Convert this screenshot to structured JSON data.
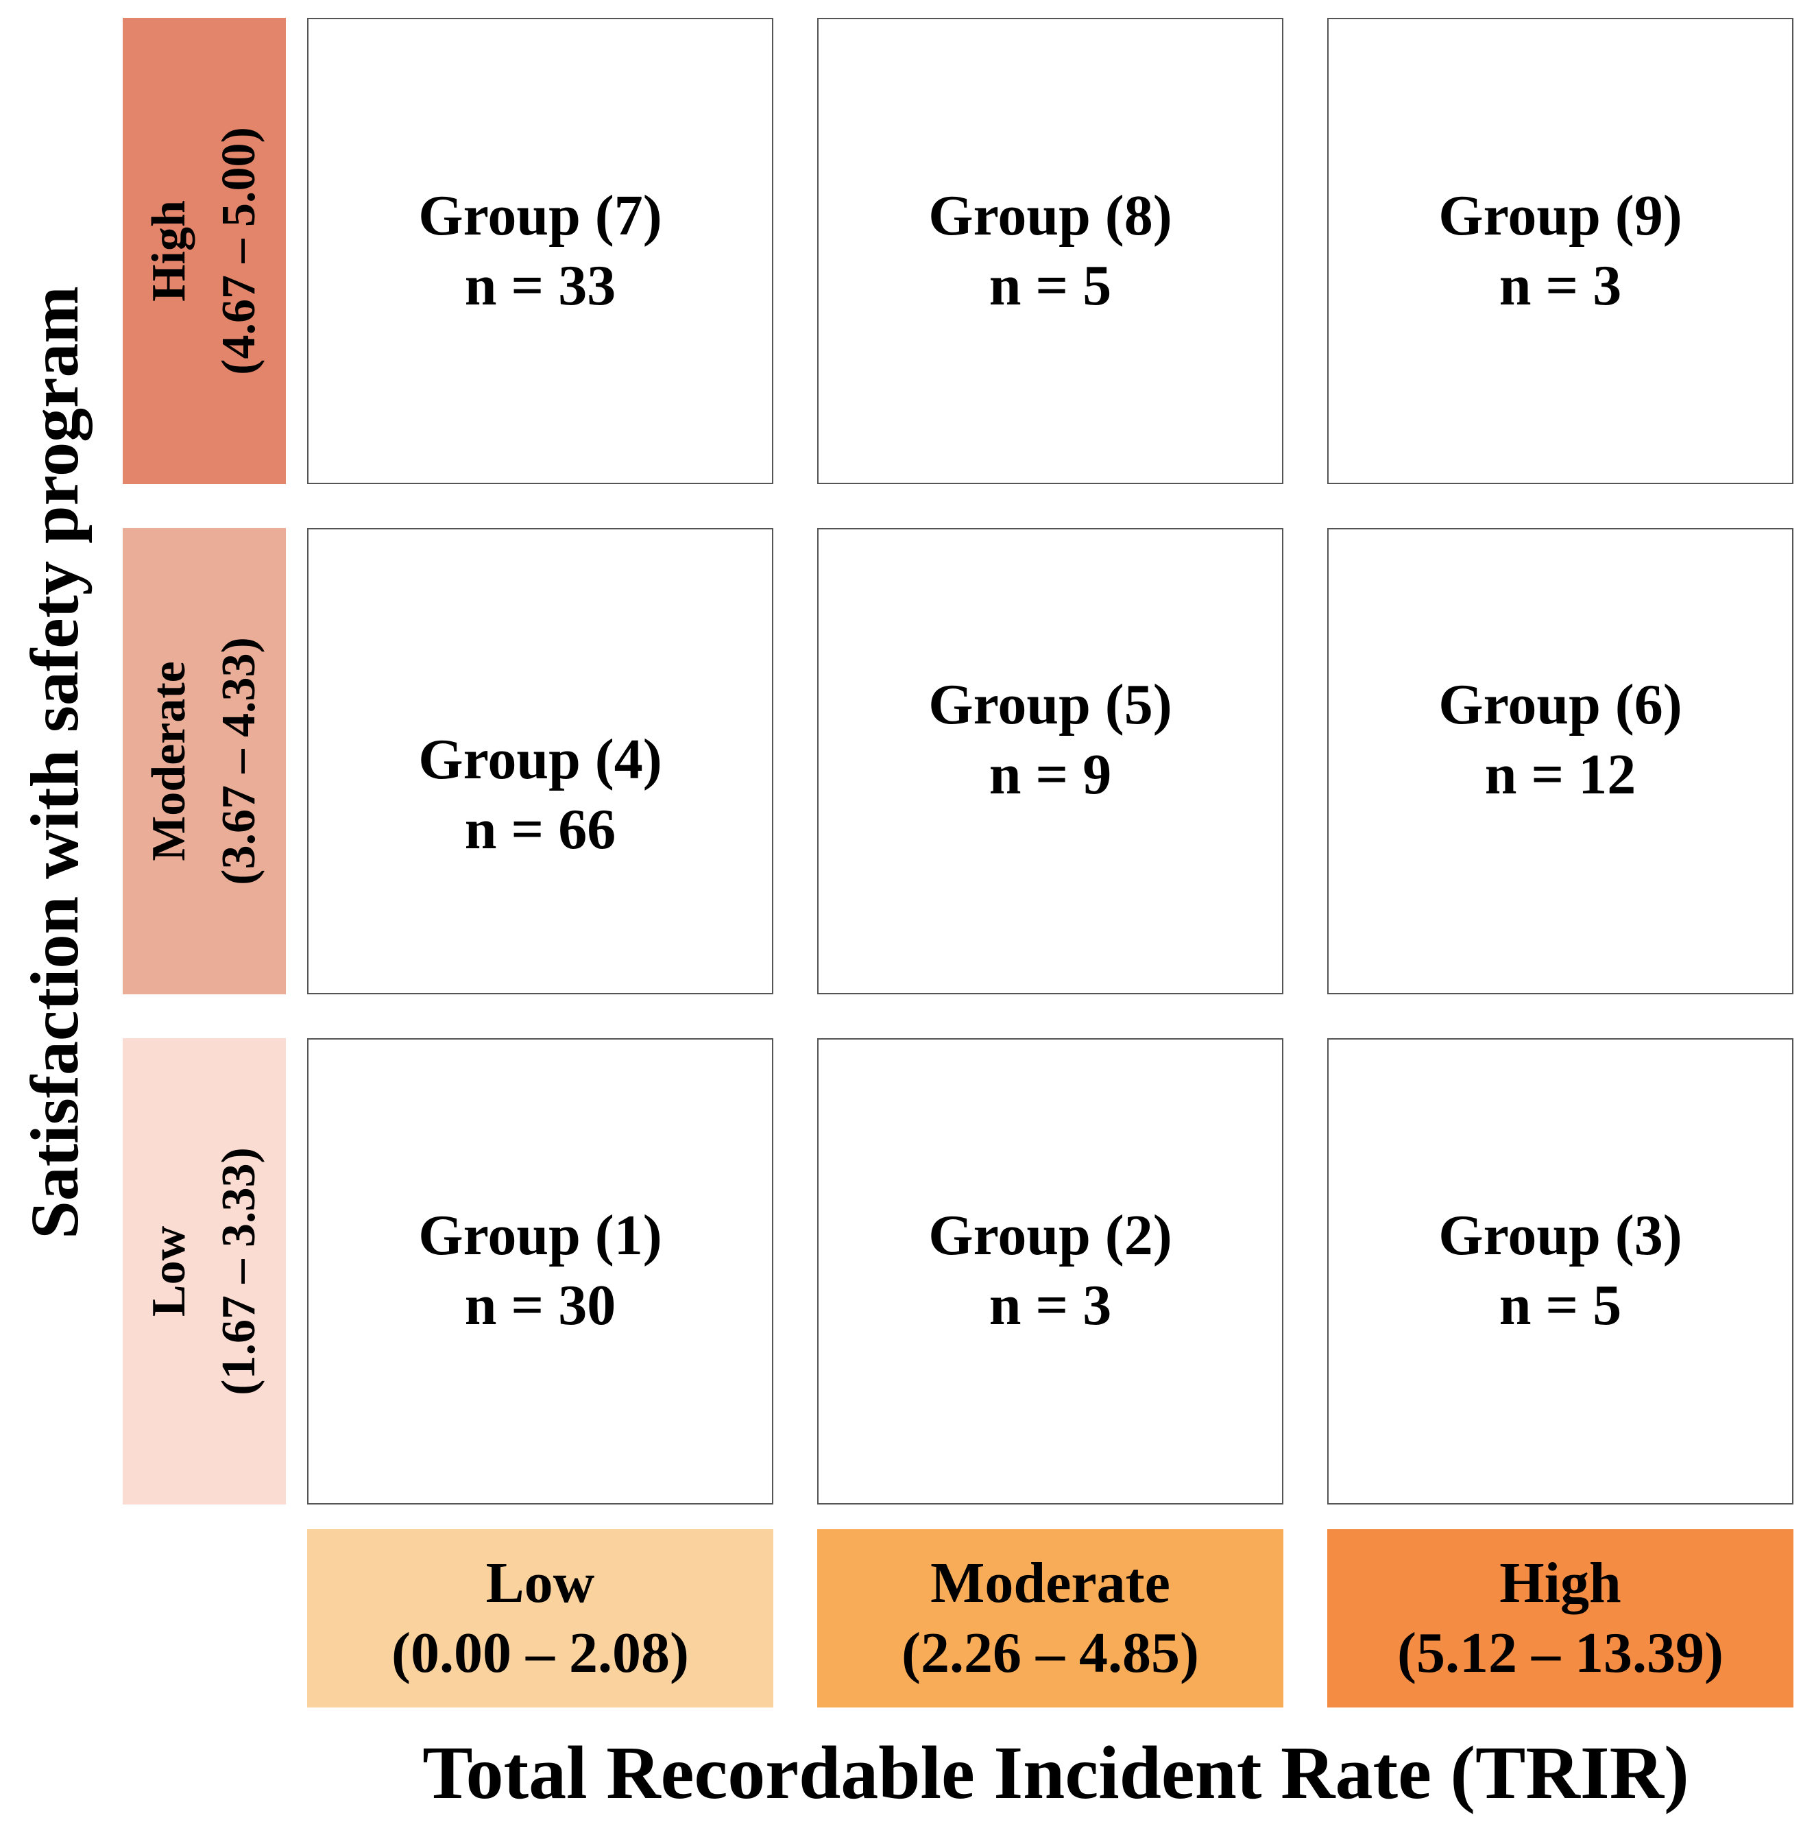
{
  "y_axis": {
    "title": "Satisfaction with safety program"
  },
  "x_axis": {
    "title": "Total Recordable Incident Rate (TRIR)"
  },
  "rows": [
    {
      "label": "High",
      "range": "(4.67 – 5.00)",
      "color": "#E2856A"
    },
    {
      "label": "Moderate",
      "range": "(3.67 – 4.33)",
      "color": "#EAAD98"
    },
    {
      "label": "Low",
      "range": "(1.67 – 3.33)",
      "color": "#FBDCD2"
    }
  ],
  "columns": [
    {
      "label": "Low",
      "range": "(0.00 – 2.08)",
      "color": "#FAD29E"
    },
    {
      "label": "Moderate",
      "range": "(2.26 – 4.85)",
      "color": "#F8AC58"
    },
    {
      "label": "High",
      "range": "(5.12 – 13.39)",
      "color": "#F48C44"
    }
  ],
  "cells": [
    [
      {
        "group": "Group (7)",
        "n": "n = 33"
      },
      {
        "group": "Group (8)",
        "n": "n = 5"
      },
      {
        "group": "Group (9)",
        "n": "n = 3"
      }
    ],
    [
      {
        "group": "Group (4)",
        "n": "n = 66"
      },
      {
        "group": "Group (5)",
        "n": "n = 9"
      },
      {
        "group": "Group (6)",
        "n": "n = 12"
      }
    ],
    [
      {
        "group": "Group (1)",
        "n": "n = 30"
      },
      {
        "group": "Group (2)",
        "n": "n = 3"
      },
      {
        "group": "Group (3)",
        "n": "n = 5"
      }
    ]
  ]
}
